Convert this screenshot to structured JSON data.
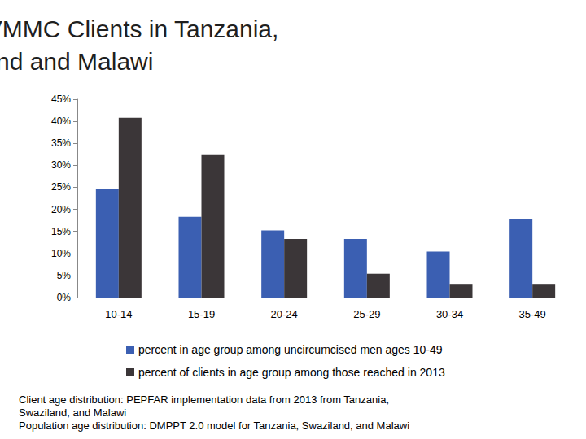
{
  "chart_data": {
    "type": "bar",
    "title": "Age Distribution of VMMC Clients in Tanzania, Swaziland and Malawi",
    "categories": [
      "10-14",
      "15-19",
      "20-24",
      "25-29",
      "30-34",
      "35-49"
    ],
    "series": [
      {
        "name": "percent in age group among uncircumcised men ages 10-49",
        "color": "#3b5fb2",
        "values": [
          24.7,
          18.3,
          15.2,
          13.3,
          10.4,
          17.9
        ]
      },
      {
        "name": "percent of clients in age group among those reached in 2013",
        "color": "#3b3638",
        "values": [
          40.8,
          32.3,
          13.3,
          5.4,
          3.1,
          3.1
        ]
      }
    ],
    "ylim": [
      0,
      45
    ],
    "yticks": [
      {
        "value": 0,
        "label": "0%"
      },
      {
        "value": 5,
        "label": "5%"
      },
      {
        "value": 10,
        "label": "10%"
      },
      {
        "value": 15,
        "label": "15%"
      },
      {
        "value": 20,
        "label": "20%"
      },
      {
        "value": 25,
        "label": "25%"
      },
      {
        "value": 30,
        "label": "30%"
      },
      {
        "value": 35,
        "label": "35%"
      },
      {
        "value": 40,
        "label": "40%"
      },
      {
        "value": 45,
        "label": "45%"
      }
    ],
    "grid": false,
    "legend": "bottom",
    "data_labels": false,
    "annotations": [
      "Client age distribution: PEPFAR implementation data from 2013 from Tanzania, Swaziland, and Malawi",
      "Population age distribution: DMPPT 2.0 model for Tanzania, Swaziland, and Malawi"
    ]
  }
}
